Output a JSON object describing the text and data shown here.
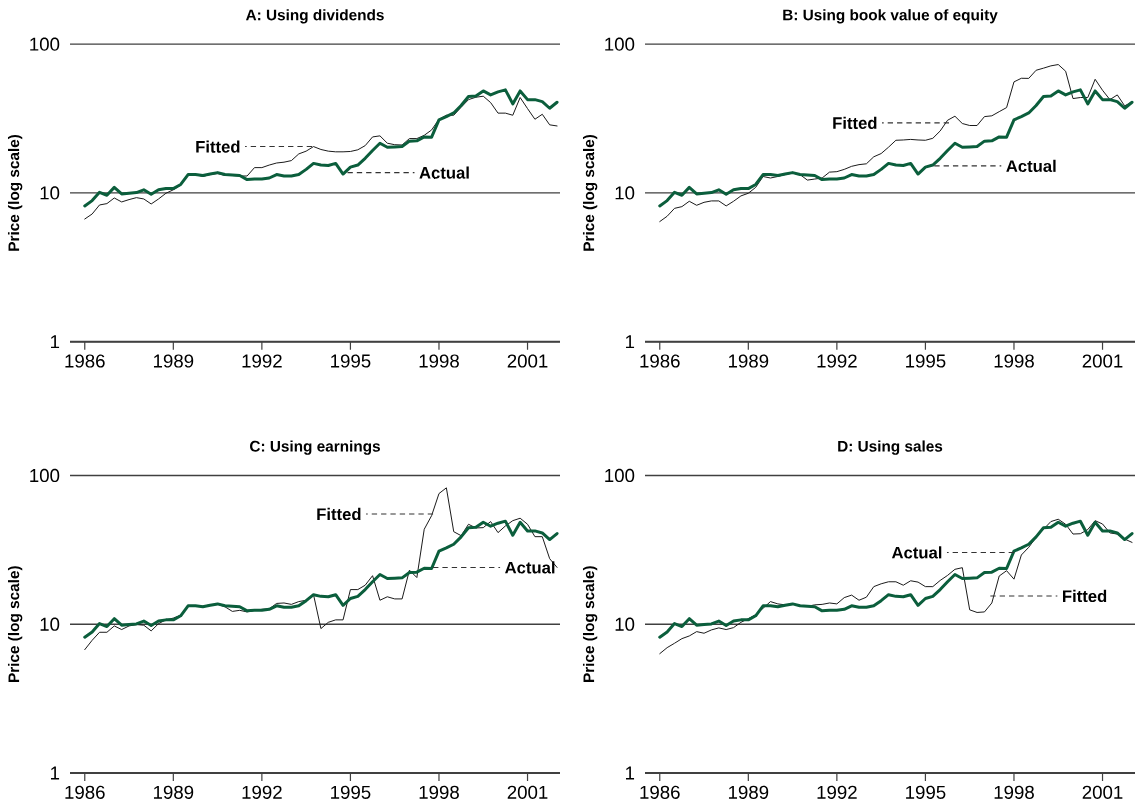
{
  "chart_data": [
    {
      "type": "line",
      "title": "A: Using dividends",
      "ylabel": "Price (log scale)",
      "log": "y",
      "grid": "y",
      "xlim": [
        1985.5,
        2002.1
      ],
      "xticks": [
        1986,
        1989,
        1992,
        1995,
        1998,
        2001
      ],
      "ylim": [
        1,
        100
      ],
      "yticks": [
        1,
        10,
        100
      ],
      "x": [
        1986,
        1986.25,
        1986.5,
        1986.75,
        1987,
        1987.25,
        1987.5,
        1987.75,
        1988,
        1988.25,
        1988.5,
        1988.75,
        1989,
        1989.25,
        1989.5,
        1989.75,
        1990,
        1990.25,
        1990.5,
        1990.75,
        1991,
        1991.25,
        1991.5,
        1991.75,
        1992,
        1992.25,
        1992.5,
        1992.75,
        1993,
        1993.25,
        1993.5,
        1993.75,
        1994,
        1994.25,
        1994.5,
        1994.75,
        1995,
        1995.25,
        1995.5,
        1995.75,
        1996,
        1996.25,
        1996.5,
        1996.75,
        1997,
        1997.25,
        1997.5,
        1997.75,
        1998,
        1998.25,
        1998.5,
        1998.75,
        1999,
        1999.25,
        1999.5,
        1999.75,
        2000,
        2000.25,
        2000.5,
        2000.75,
        2001,
        2001.25,
        2001.5,
        2001.75,
        2002
      ],
      "series": [
        {
          "color": "#1a1a1a",
          "values": [
            6.68,
            7.22,
            8.3,
            8.48,
            9.25,
            8.7,
            9.02,
            9.3,
            9.11,
            8.43,
            9.11,
            9.95,
            10.5,
            11.3,
            13.4,
            13.3,
            12.9,
            13.3,
            13.5,
            13.1,
            13.1,
            13.0,
            13.0,
            14.8,
            14.8,
            15.4,
            15.9,
            16.1,
            16.5,
            18.3,
            19.1,
            20.5,
            19.6,
            19.1,
            18.9,
            18.9,
            19.0,
            19.5,
            20.8,
            23.8,
            24.2,
            21.6,
            21.1,
            21.0,
            23.2,
            23.2,
            24.4,
            26.5,
            31.3,
            33.3,
            33.3,
            37.7,
            42.4,
            44.0,
            44.7,
            40.5,
            34.4,
            34.4,
            33.3,
            43.8,
            36.9,
            31.3,
            33.8,
            28.7,
            28.2
          ]
        },
        {
          "color": "#0b5e3c",
          "values": [
            8.18,
            8.88,
            10.1,
            9.65,
            10.9,
            9.85,
            9.95,
            10.05,
            10.5,
            9.8,
            10.5,
            10.7,
            10.7,
            11.4,
            13.3,
            13.3,
            13.1,
            13.4,
            13.7,
            13.3,
            13.2,
            13.1,
            12.3,
            12.4,
            12.4,
            12.6,
            13.3,
            13.0,
            13.0,
            13.3,
            14.4,
            15.8,
            15.4,
            15.3,
            15.8,
            13.4,
            14.9,
            15.4,
            17.1,
            19.3,
            21.6,
            20.3,
            20.4,
            20.5,
            22.3,
            22.4,
            23.8,
            23.7,
            31.0,
            32.6,
            34.5,
            38.7,
            44.5,
            44.9,
            48.5,
            45.6,
            47.8,
            49.3,
            39.7,
            48.5,
            42.4,
            42.4,
            41.1,
            37.1,
            40.7
          ]
        }
      ],
      "annotations": [
        {
          "text": "Fitted",
          "x": 1993.7,
          "y": 20.5
        },
        {
          "text": "Actual",
          "x": 1994.9,
          "y": 13.7
        }
      ]
    },
    {
      "type": "line",
      "title": "B: Using book value of equity",
      "ylabel": "Price (log scale)",
      "log": "y",
      "grid": "y",
      "xlim": [
        1985.5,
        2002.1
      ],
      "xticks": [
        1986,
        1989,
        1992,
        1995,
        1998,
        2001
      ],
      "ylim": [
        1,
        100
      ],
      "yticks": [
        1,
        10,
        100
      ],
      "x": [
        1986,
        1986.25,
        1986.5,
        1986.75,
        1987,
        1987.25,
        1987.5,
        1987.75,
        1988,
        1988.25,
        1988.5,
        1988.75,
        1989,
        1989.25,
        1989.5,
        1989.75,
        1990,
        1990.25,
        1990.5,
        1990.75,
        1991,
        1991.25,
        1991.5,
        1991.75,
        1992,
        1992.25,
        1992.5,
        1992.75,
        1993,
        1993.25,
        1993.5,
        1993.75,
        1994,
        1994.25,
        1994.5,
        1994.75,
        1995,
        1995.25,
        1995.5,
        1995.75,
        1996,
        1996.25,
        1996.5,
        1996.75,
        1997,
        1997.25,
        1997.5,
        1997.75,
        1998,
        1998.25,
        1998.5,
        1998.75,
        1999,
        1999.25,
        1999.5,
        1999.75,
        2000,
        2000.25,
        2000.5,
        2000.75,
        2001,
        2001.25,
        2001.5,
        2001.75,
        2002
      ],
      "series": [
        {
          "color": "#1a1a1a",
          "values": [
            6.42,
            6.97,
            7.88,
            8.09,
            8.79,
            8.26,
            8.65,
            8.84,
            8.84,
            8.18,
            8.79,
            9.55,
            9.95,
            10.9,
            12.9,
            12.6,
            12.9,
            13.3,
            13.6,
            13.3,
            12.2,
            12.4,
            12.6,
            13.8,
            13.9,
            14.4,
            15.1,
            15.5,
            15.7,
            17.5,
            18.4,
            20.3,
            22.6,
            22.7,
            22.9,
            22.7,
            22.6,
            23.3,
            26.1,
            30.8,
            32.8,
            29.3,
            28.4,
            28.4,
            32.6,
            33.0,
            35.2,
            37.5,
            55.8,
            59.0,
            58.9,
            66.8,
            69.0,
            71.5,
            73.0,
            65.8,
            43.1,
            43.8,
            43.8,
            58.1,
            49.0,
            42.4,
            45.6,
            38.5,
            40.9
          ]
        },
        {
          "color": "#0b5e3c",
          "values": [
            8.18,
            8.88,
            10.1,
            9.65,
            10.9,
            9.85,
            9.95,
            10.05,
            10.5,
            9.8,
            10.5,
            10.7,
            10.7,
            11.4,
            13.3,
            13.3,
            13.1,
            13.4,
            13.7,
            13.3,
            13.2,
            13.1,
            12.3,
            12.4,
            12.4,
            12.6,
            13.3,
            13.0,
            13.0,
            13.3,
            14.4,
            15.8,
            15.4,
            15.3,
            15.8,
            13.4,
            14.9,
            15.4,
            17.1,
            19.3,
            21.6,
            20.3,
            20.4,
            20.5,
            22.3,
            22.4,
            23.8,
            23.7,
            31.0,
            32.6,
            34.5,
            38.7,
            44.5,
            44.9,
            48.5,
            45.6,
            47.8,
            49.3,
            39.7,
            48.5,
            42.4,
            42.4,
            41.1,
            37.1,
            40.7
          ]
        }
      ],
      "annotations": [
        {
          "text": "Fitted",
          "x": 1995.8,
          "y": 29.6
        },
        {
          "text": "Actual",
          "x": 1995.3,
          "y": 15.2
        }
      ]
    },
    {
      "type": "line",
      "title": "C: Using earnings",
      "ylabel": "Price (log scale)",
      "log": "y",
      "grid": "y",
      "xlim": [
        1985.5,
        2002.1
      ],
      "xticks": [
        1986,
        1989,
        1992,
        1995,
        1998,
        2001
      ],
      "ylim": [
        1,
        100
      ],
      "yticks": [
        1,
        10,
        100
      ],
      "x": [
        1986,
        1986.25,
        1986.5,
        1986.75,
        1987,
        1987.25,
        1987.5,
        1987.75,
        1988,
        1988.25,
        1988.5,
        1988.75,
        1989,
        1989.25,
        1989.5,
        1989.75,
        1990,
        1990.25,
        1990.5,
        1990.75,
        1991,
        1991.25,
        1991.5,
        1991.75,
        1992,
        1992.25,
        1992.5,
        1992.75,
        1993,
        1993.25,
        1993.5,
        1993.75,
        1994,
        1994.25,
        1994.5,
        1994.75,
        1995,
        1995.25,
        1995.5,
        1995.75,
        1996,
        1996.25,
        1996.5,
        1996.75,
        1997,
        1997.25,
        1997.5,
        1997.75,
        1998,
        1998.25,
        1998.5,
        1998.75,
        1999,
        1999.25,
        1999.5,
        1999.75,
        2000,
        2000.25,
        2000.5,
        2000.75,
        2001,
        2001.25,
        2001.5,
        2001.75,
        2002
      ],
      "series": [
        {
          "color": "#1a1a1a",
          "values": [
            6.75,
            7.8,
            8.83,
            8.83,
            9.74,
            9.21,
            9.74,
            9.95,
            9.85,
            9.02,
            10.1,
            10.7,
            11.0,
            11.5,
            13.3,
            13.2,
            13.2,
            13.5,
            13.6,
            13.1,
            12.2,
            12.4,
            12.1,
            12.4,
            12.6,
            12.7,
            13.8,
            13.9,
            13.6,
            14.2,
            14.5,
            15.8,
            9.35,
            10.3,
            10.7,
            10.7,
            17.1,
            17.1,
            18.3,
            21.2,
            14.5,
            15.3,
            14.8,
            14.8,
            23.1,
            20.6,
            43.5,
            53.7,
            75.6,
            82.6,
            41.9,
            39.4,
            47.0,
            44.4,
            44.6,
            49.0,
            41.3,
            45.8,
            49.7,
            51.6,
            47.0,
            38.8,
            38.8,
            27.6,
            24.1
          ]
        },
        {
          "color": "#0b5e3c",
          "values": [
            8.18,
            8.88,
            10.1,
            9.65,
            10.9,
            9.85,
            9.95,
            10.05,
            10.5,
            9.8,
            10.5,
            10.7,
            10.7,
            11.4,
            13.3,
            13.3,
            13.1,
            13.4,
            13.7,
            13.3,
            13.2,
            13.1,
            12.3,
            12.4,
            12.4,
            12.6,
            13.3,
            13.0,
            13.0,
            13.3,
            14.4,
            15.8,
            15.4,
            15.3,
            15.8,
            13.4,
            14.9,
            15.4,
            17.1,
            19.3,
            21.6,
            20.3,
            20.4,
            20.5,
            22.3,
            22.4,
            23.8,
            23.7,
            31.0,
            32.6,
            34.5,
            38.7,
            44.5,
            44.9,
            48.5,
            45.6,
            47.8,
            49.3,
            39.7,
            48.5,
            42.4,
            42.4,
            41.1,
            37.1,
            40.7
          ]
        }
      ],
      "annotations": [
        {
          "text": "Fitted",
          "x": 1997.8,
          "y": 55.1
        },
        {
          "text": "Actual",
          "x": 1997.8,
          "y": 24.1
        }
      ]
    },
    {
      "type": "line",
      "title": "D: Using sales",
      "ylabel": "Price (log scale)",
      "log": "y",
      "grid": "y",
      "xlim": [
        1985.5,
        2002.1
      ],
      "xticks": [
        1986,
        1989,
        1992,
        1995,
        1998,
        2001
      ],
      "ylim": [
        1,
        100
      ],
      "yticks": [
        1,
        10,
        100
      ],
      "x": [
        1986,
        1986.25,
        1986.5,
        1986.75,
        1987,
        1987.25,
        1987.5,
        1987.75,
        1988,
        1988.25,
        1988.5,
        1988.75,
        1989,
        1989.25,
        1989.5,
        1989.75,
        1990,
        1990.25,
        1990.5,
        1990.75,
        1991,
        1991.25,
        1991.5,
        1991.75,
        1992,
        1992.25,
        1992.5,
        1992.75,
        1993,
        1993.25,
        1993.5,
        1993.75,
        1994,
        1994.25,
        1994.5,
        1994.75,
        1995,
        1995.25,
        1995.5,
        1995.75,
        1996,
        1996.25,
        1996.5,
        1996.75,
        1997,
        1997.25,
        1997.5,
        1997.75,
        1998,
        1998.25,
        1998.5,
        1998.75,
        1999,
        1999.25,
        1999.5,
        1999.75,
        2000,
        2000.25,
        2000.5,
        2000.75,
        2001,
        2001.25,
        2001.5,
        2001.75,
        2002
      ],
      "series": [
        {
          "color": "#1a1a1a",
          "values": [
            6.34,
            6.96,
            7.45,
            8.0,
            8.34,
            8.92,
            8.7,
            9.16,
            9.45,
            9.21,
            9.49,
            10.3,
            10.9,
            11.6,
            12.8,
            14.2,
            13.7,
            13.5,
            13.7,
            13.4,
            13.2,
            13.5,
            13.6,
            13.9,
            13.7,
            15.1,
            15.7,
            14.5,
            15.2,
            17.9,
            18.7,
            19.3,
            19.3,
            18.3,
            19.6,
            19.2,
            17.9,
            17.9,
            19.7,
            21.3,
            23.4,
            24.0,
            12.5,
            12.0,
            12.1,
            13.9,
            21.1,
            22.9,
            20.1,
            29.2,
            32.9,
            38.4,
            43.5,
            49.0,
            50.8,
            47.0,
            40.4,
            40.6,
            43.3,
            49.7,
            47.2,
            41.1,
            40.4,
            37.4,
            35.5
          ]
        },
        {
          "color": "#0b5e3c",
          "values": [
            8.18,
            8.88,
            10.1,
            9.65,
            10.9,
            9.85,
            9.95,
            10.05,
            10.5,
            9.8,
            10.5,
            10.7,
            10.7,
            11.4,
            13.3,
            13.3,
            13.1,
            13.4,
            13.7,
            13.3,
            13.2,
            13.1,
            12.3,
            12.4,
            12.4,
            12.6,
            13.3,
            13.0,
            13.0,
            13.3,
            14.4,
            15.8,
            15.4,
            15.3,
            15.8,
            13.4,
            14.9,
            15.4,
            17.1,
            19.3,
            21.6,
            20.3,
            20.4,
            20.5,
            22.3,
            22.4,
            23.8,
            23.7,
            31.0,
            32.6,
            34.5,
            38.7,
            44.5,
            44.9,
            48.5,
            45.6,
            47.8,
            49.3,
            39.7,
            48.5,
            42.4,
            42.4,
            41.1,
            37.1,
            40.7
          ]
        }
      ],
      "annotations": [
        {
          "text": "Actual",
          "x": 1998.0,
          "y": 30.4
        },
        {
          "text": "Fitted",
          "x": 1997.2,
          "y": 15.5
        }
      ]
    }
  ]
}
